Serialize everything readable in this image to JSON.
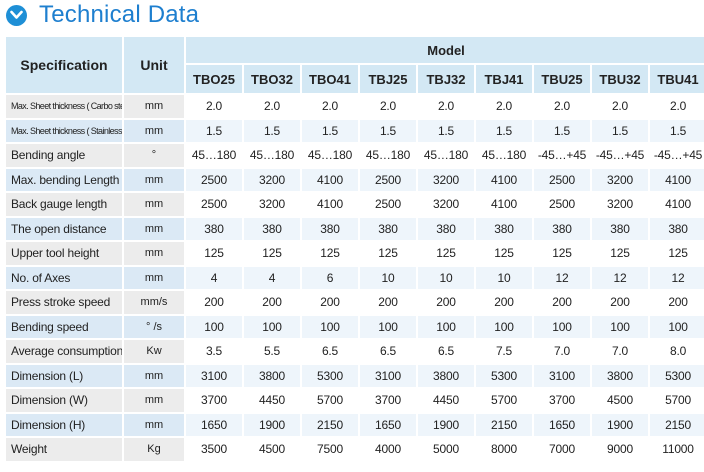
{
  "title": "Technical Data",
  "header": {
    "specification": "Specification",
    "unit": "Unit",
    "model": "Model",
    "models": [
      "TBO25",
      "TBO32",
      "TBO41",
      "TBJ25",
      "TBJ32",
      "TBJ41",
      "TBU25",
      "TBU32",
      "TBU41"
    ]
  },
  "rows": [
    {
      "spec": "Max. Sheet thickness ( Carbo steel)",
      "unit": "mm",
      "values": [
        "2.0",
        "2.0",
        "2.0",
        "2.0",
        "2.0",
        "2.0",
        "2.0",
        "2.0",
        "2.0"
      ]
    },
    {
      "spec": "Max. Sheet thickness ( Stainless steel)",
      "unit": "mm",
      "values": [
        "1.5",
        "1.5",
        "1.5",
        "1.5",
        "1.5",
        "1.5",
        "1.5",
        "1.5",
        "1.5"
      ]
    },
    {
      "spec": "Bending angle",
      "unit": "°",
      "values": [
        "45…180",
        "45…180",
        "45…180",
        "45…180",
        "45…180",
        "45…180",
        "-45…+45",
        "-45…+45",
        "-45…+45"
      ]
    },
    {
      "spec": "Max. bending Length",
      "unit": "mm",
      "values": [
        "2500",
        "3200",
        "4100",
        "2500",
        "3200",
        "4100",
        "2500",
        "3200",
        "4100"
      ]
    },
    {
      "spec": "Back gauge length",
      "unit": "mm",
      "values": [
        "2500",
        "3200",
        "4100",
        "2500",
        "3200",
        "4100",
        "2500",
        "3200",
        "4100"
      ]
    },
    {
      "spec": "The open distance",
      "unit": "mm",
      "values": [
        "380",
        "380",
        "380",
        "380",
        "380",
        "380",
        "380",
        "380",
        "380"
      ]
    },
    {
      "spec": "Upper tool height",
      "unit": "mm",
      "values": [
        "125",
        "125",
        "125",
        "125",
        "125",
        "125",
        "125",
        "125",
        "125"
      ]
    },
    {
      "spec": "No. of Axes",
      "unit": "mm",
      "values": [
        "4",
        "4",
        "6",
        "10",
        "10",
        "10",
        "12",
        "12",
        "12"
      ]
    },
    {
      "spec": "Press stroke speed",
      "unit": "mm/s",
      "values": [
        "200",
        "200",
        "200",
        "200",
        "200",
        "200",
        "200",
        "200",
        "200"
      ]
    },
    {
      "spec": "Bending speed",
      "unit": "° /s",
      "values": [
        "100",
        "100",
        "100",
        "100",
        "100",
        "100",
        "100",
        "100",
        "100"
      ]
    },
    {
      "spec": "Average consumption",
      "unit": "Kw",
      "values": [
        "3.5",
        "5.5",
        "6.5",
        "6.5",
        "6.5",
        "7.5",
        "7.0",
        "7.0",
        "8.0"
      ]
    },
    {
      "spec": "Dimension (L)",
      "unit": "mm",
      "values": [
        "3100",
        "3800",
        "5300",
        "3100",
        "3800",
        "5300",
        "3100",
        "3800",
        "5300"
      ]
    },
    {
      "spec": "Dimension (W)",
      "unit": "mm",
      "values": [
        "3700",
        "4450",
        "5700",
        "3700",
        "4450",
        "5700",
        "3700",
        "4500",
        "5700"
      ]
    },
    {
      "spec": "Dimension (H)",
      "unit": "mm",
      "values": [
        "1650",
        "1900",
        "2150",
        "1650",
        "1900",
        "2150",
        "1650",
        "1900",
        "2150"
      ]
    },
    {
      "spec": "Weight",
      "unit": "Kg",
      "values": [
        "3500",
        "4500",
        "7500",
        "4000",
        "5000",
        "8000",
        "7000",
        "9000",
        "11000"
      ]
    }
  ],
  "colors": {
    "accent": "#1e7fcf",
    "header_bg": "#d3e8f4",
    "row_alt_blue": "#dbe9f5",
    "row_grey": "#ececec"
  }
}
